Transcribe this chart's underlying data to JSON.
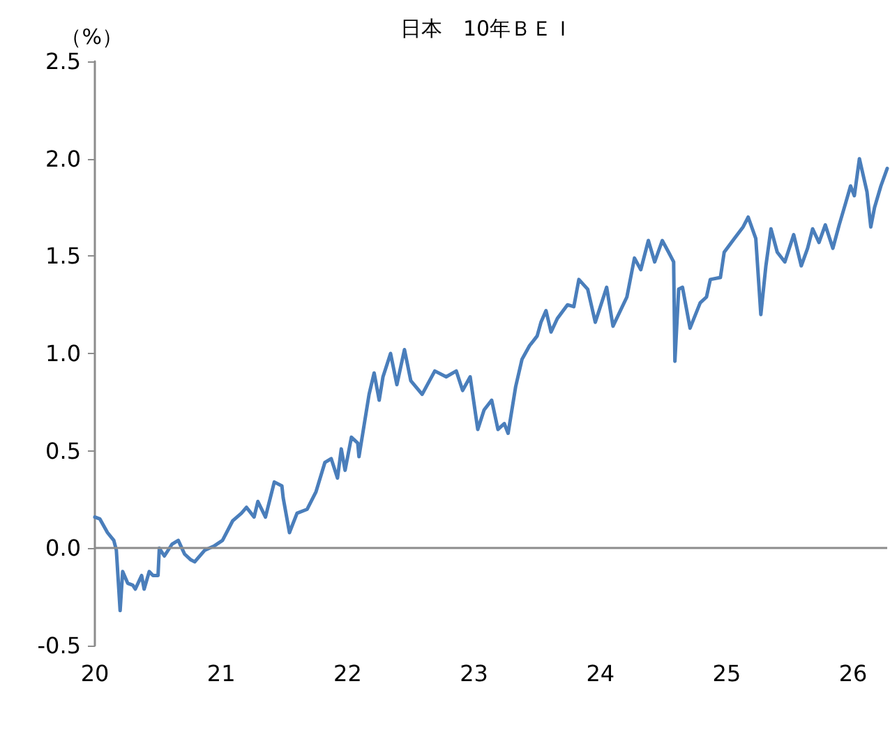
{
  "chart_data": {
    "type": "line",
    "title": "日本　10年ＢＥＩ",
    "ylabel": "（%）",
    "xlim": [
      20,
      26.27
    ],
    "xticks": [
      20,
      21,
      22,
      23,
      24,
      25,
      26
    ],
    "ylim": [
      -0.5,
      2.5
    ],
    "yticks": [
      -0.5,
      {
        "value": 0,
        "label": "0.0"
      },
      0.5,
      {
        "value": 1,
        "label": "1.0"
      },
      1.5,
      {
        "value": 2,
        "label": "2.0"
      },
      2.5
    ],
    "grid": false,
    "marker": "none",
    "line_style": "solid",
    "ref_lines": [
      {
        "axis": "y",
        "value": 0,
        "color": "#8c8c8c"
      }
    ],
    "series": [
      {
        "color": "#4a7ebb",
        "x": [
          20.0,
          20.04,
          20.1,
          20.15,
          20.17,
          20.2,
          20.22,
          20.26,
          20.3,
          20.32,
          20.37,
          20.39,
          20.43,
          20.46,
          20.5,
          20.51,
          20.55,
          20.61,
          20.66,
          20.71,
          20.76,
          20.79,
          20.87,
          20.94,
          21.01,
          21.09,
          21.16,
          21.2,
          21.26,
          21.29,
          21.35,
          21.42,
          21.48,
          21.49,
          21.54,
          21.6,
          21.68,
          21.75,
          21.82,
          21.87,
          21.92,
          21.95,
          21.98,
          22.03,
          22.08,
          22.09,
          22.17,
          22.21,
          22.25,
          22.28,
          22.34,
          22.39,
          22.45,
          22.5,
          22.59,
          22.69,
          22.78,
          22.86,
          22.91,
          22.97,
          23.03,
          23.08,
          23.14,
          23.19,
          23.24,
          23.27,
          23.33,
          23.38,
          23.44,
          23.5,
          23.53,
          23.57,
          23.61,
          23.66,
          23.74,
          23.79,
          23.83,
          23.9,
          23.96,
          24.05,
          24.1,
          24.21,
          24.27,
          24.32,
          24.38,
          24.43,
          24.49,
          24.54,
          24.58,
          24.59,
          24.62,
          24.65,
          24.71,
          24.79,
          24.84,
          24.87,
          24.95,
          24.98,
          25.06,
          25.13,
          25.17,
          25.23,
          25.27,
          25.31,
          25.35,
          25.4,
          25.46,
          25.53,
          25.59,
          25.64,
          25.68,
          25.73,
          25.78,
          25.84,
          25.89,
          25.94,
          25.98,
          26.01,
          26.05,
          26.11,
          26.14,
          26.17,
          26.22,
          26.27
        ],
        "values": [
          0.16,
          0.15,
          0.08,
          0.04,
          -0.01,
          -0.32,
          -0.12,
          -0.18,
          -0.19,
          -0.21,
          -0.14,
          -0.21,
          -0.12,
          -0.14,
          -0.14,
          0.0,
          -0.04,
          0.02,
          0.04,
          -0.03,
          -0.06,
          -0.07,
          -0.01,
          0.01,
          0.04,
          0.14,
          0.18,
          0.21,
          0.16,
          0.24,
          0.16,
          0.34,
          0.32,
          0.26,
          0.08,
          0.18,
          0.2,
          0.29,
          0.44,
          0.46,
          0.36,
          0.51,
          0.4,
          0.57,
          0.54,
          0.47,
          0.79,
          0.9,
          0.76,
          0.88,
          1.0,
          0.84,
          1.02,
          0.86,
          0.79,
          0.91,
          0.88,
          0.91,
          0.81,
          0.88,
          0.61,
          0.71,
          0.76,
          0.61,
          0.64,
          0.59,
          0.83,
          0.97,
          1.04,
          1.09,
          1.16,
          1.22,
          1.11,
          1.18,
          1.25,
          1.24,
          1.38,
          1.33,
          1.16,
          1.34,
          1.14,
          1.29,
          1.49,
          1.43,
          1.58,
          1.47,
          1.58,
          1.52,
          1.47,
          0.96,
          1.33,
          1.34,
          1.13,
          1.26,
          1.29,
          1.38,
          1.39,
          1.52,
          1.59,
          1.65,
          1.7,
          1.59,
          1.2,
          1.45,
          1.64,
          1.52,
          1.47,
          1.61,
          1.45,
          1.54,
          1.64,
          1.57,
          1.66,
          1.54,
          1.66,
          1.77,
          1.86,
          1.81,
          2.0,
          1.83,
          1.65,
          1.75,
          1.86,
          1.95
        ]
      }
    ]
  }
}
